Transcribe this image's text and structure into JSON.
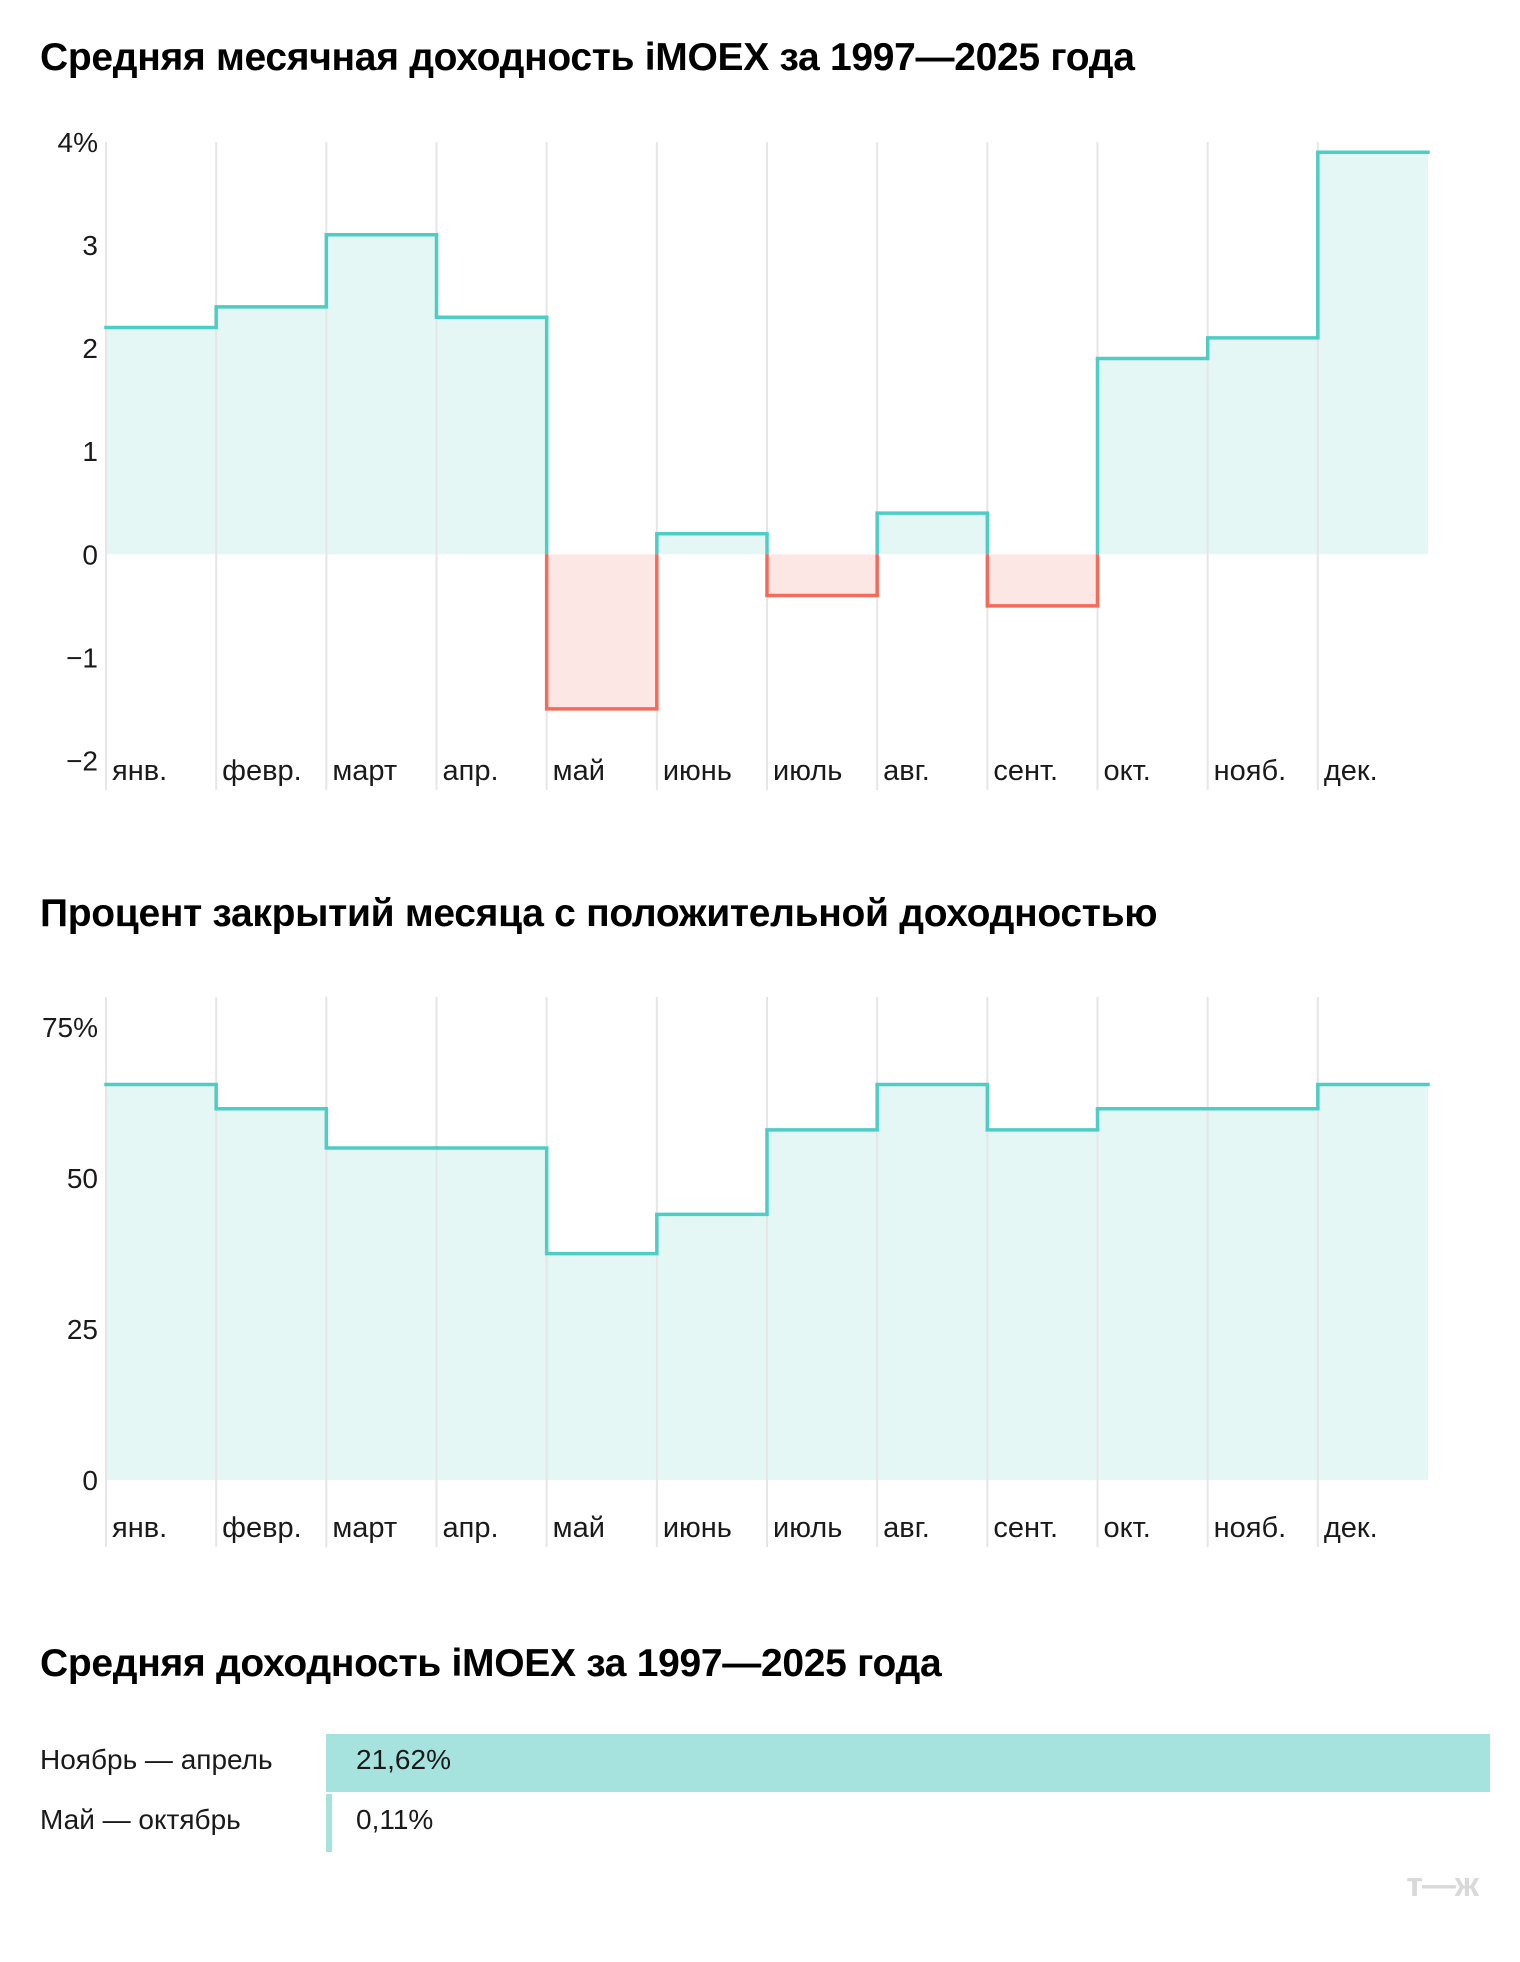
{
  "chart_data": [
    {
      "type": "step-area",
      "title": "Средняя месячная доходность iMOEX за 1997—2025 года",
      "categories": [
        "янв.",
        "февр.",
        "март",
        "апр.",
        "май",
        "июнь",
        "июль",
        "авг.",
        "сент.",
        "окт.",
        "нояб.",
        "дек."
      ],
      "values": [
        2.2,
        2.4,
        3.1,
        2.3,
        -1.5,
        0.2,
        -0.4,
        0.4,
        -0.5,
        1.9,
        2.1,
        3.9
      ],
      "ylim": [
        -2.5,
        4
      ],
      "yticks": [
        -2,
        -1,
        0,
        1,
        2,
        3,
        4
      ],
      "ytick_labels": [
        "−2",
        "−1",
        "0",
        "1",
        "2",
        "3",
        "4%"
      ],
      "colors": {
        "positive_line": "#4ecdc4",
        "positive_fill": "#e5f7f5",
        "negative_line": "#f26b5b",
        "negative_fill": "#fde7e5"
      },
      "grid": "vertical",
      "legend": "none"
    },
    {
      "type": "step-area",
      "title": "Процент закрытий месяца с положительной доходностью",
      "categories": [
        "янв.",
        "февр.",
        "март",
        "апр.",
        "май",
        "июнь",
        "июль",
        "авг.",
        "сент.",
        "окт.",
        "нояб.",
        "дек."
      ],
      "values": [
        65.5,
        61.5,
        55,
        55,
        37.5,
        44,
        58,
        65.5,
        58,
        61.5,
        61.5,
        65.5
      ],
      "ylim": [
        0,
        80
      ],
      "yticks": [
        0,
        25,
        50,
        75
      ],
      "ytick_labels": [
        "0",
        "25",
        "50",
        "75%"
      ],
      "colors": {
        "positive_line": "#4ecdc4",
        "positive_fill": "#e5f7f5"
      },
      "grid": "vertical",
      "legend": "none"
    },
    {
      "type": "bar",
      "orientation": "horizontal",
      "title": "Средняя доходность iMOEX за 1997—2025 года",
      "categories": [
        "Ноябрь — апрель",
        "Май — октябрь"
      ],
      "values": [
        21.62,
        0.11
      ],
      "value_labels": [
        "21,62%",
        "0,11%"
      ],
      "xlim": [
        0,
        21.62
      ],
      "colors": {
        "bar": "#a6e3df"
      },
      "legend": "none"
    }
  ],
  "logo": "т—ж"
}
